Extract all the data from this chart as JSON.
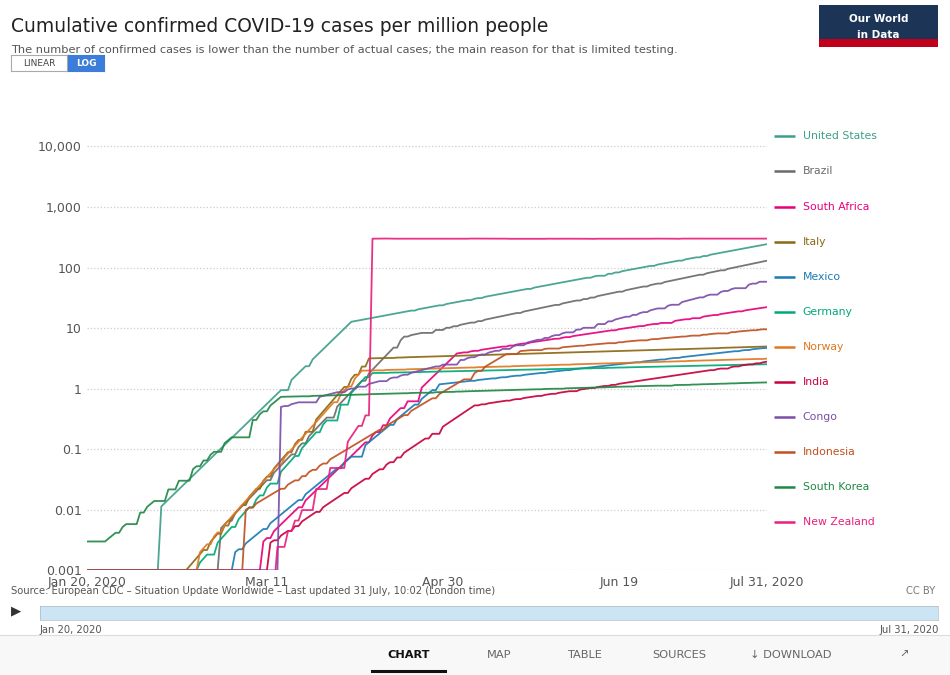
{
  "title": "Cumulative confirmed COVID-19 cases per million people",
  "subtitle": "The number of confirmed cases is lower than the number of actual cases; the main reason for that is limited testing.",
  "source": "Source: European CDC – Situation Update Worldwide – Last updated 31 July, 10:02 (London time)",
  "date_start": "Jan 20, 2020",
  "date_end": "Jul 31, 2020",
  "x_ticks": [
    "Jan 20, 2020",
    "Mar 11",
    "Apr 30",
    "Jun 19",
    "Jul 31, 2020"
  ],
  "x_tick_days": [
    0,
    51,
    101,
    151,
    193
  ],
  "y_ticks": [
    0.001,
    0.01,
    0.1,
    1,
    10,
    100,
    1000,
    10000
  ],
  "y_tick_labels": [
    "0.001",
    "0.01",
    "0.1",
    "1",
    "10",
    "100",
    "1,000",
    "10,000"
  ],
  "background_color": "#ffffff",
  "plot_bg_color": "#ffffff",
  "grid_color": "#d0d0d0",
  "countries": [
    {
      "name": "United States",
      "color": "#3d9e8c"
    },
    {
      "name": "Brazil",
      "color": "#6b6b6b"
    },
    {
      "name": "South Africa",
      "color": "#e8007c"
    },
    {
      "name": "Italy",
      "color": "#8b6914"
    },
    {
      "name": "Mexico",
      "color": "#1a7bb5"
    },
    {
      "name": "Germany",
      "color": "#00a878"
    },
    {
      "name": "Norway",
      "color": "#e07820"
    },
    {
      "name": "India",
      "color": "#c8003c"
    },
    {
      "name": "Congo",
      "color": "#7c4daa"
    },
    {
      "name": "Indonesia",
      "color": "#c05020"
    },
    {
      "name": "South Korea",
      "color": "#208844"
    },
    {
      "name": "New Zealand",
      "color": "#e8207c"
    }
  ]
}
